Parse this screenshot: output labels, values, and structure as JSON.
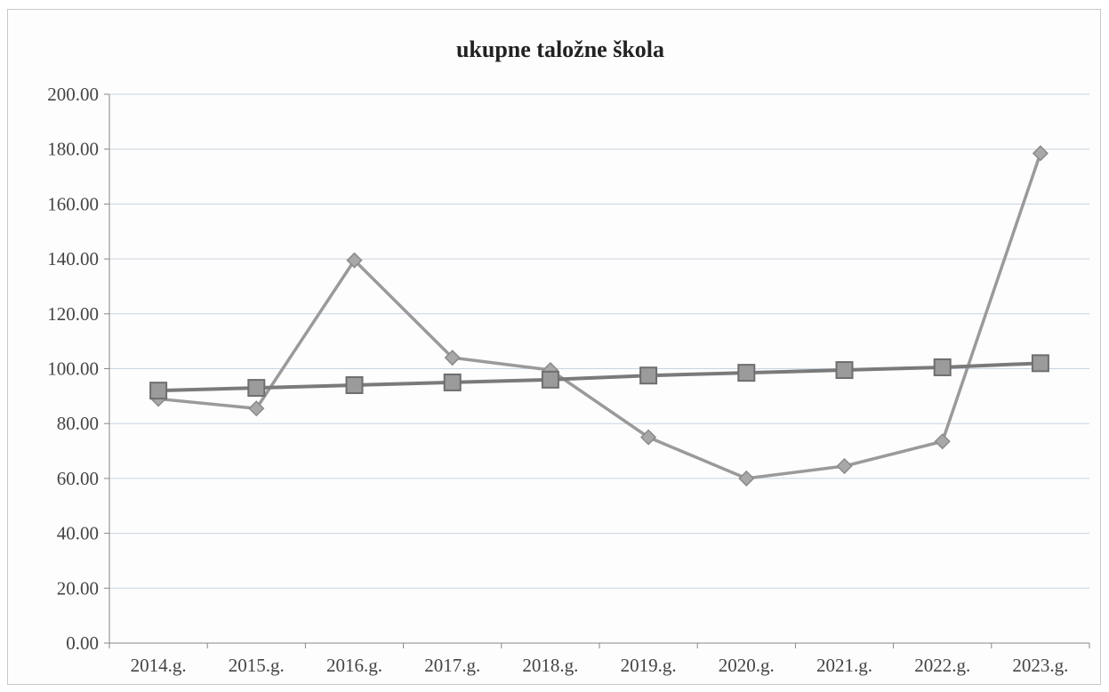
{
  "chart_data": {
    "type": "line",
    "title": "ukupne taložne škola",
    "xlabel": "",
    "ylabel": "",
    "categories": [
      "2014.g.",
      "2015.g.",
      "2016.g.",
      "2017.g.",
      "2018.g.",
      "2019.g.",
      "2020.g.",
      "2021.g.",
      "2022.g.",
      "2023.g."
    ],
    "ylim": [
      0,
      200
    ],
    "yticks": [
      "0.00",
      "20.00",
      "40.00",
      "60.00",
      "80.00",
      "100.00",
      "120.00",
      "140.00",
      "160.00",
      "180.00",
      "200.00"
    ],
    "grid": true,
    "legend": "none",
    "series": [
      {
        "marker": "diamond",
        "color": "#9a9a9a",
        "values": [
          89,
          85.5,
          139.5,
          104,
          99.5,
          75,
          60,
          64.5,
          73.5,
          178.5
        ]
      },
      {
        "marker": "square",
        "color": "#7a7a7a",
        "values": [
          92,
          93,
          94,
          95,
          96,
          97.5,
          98.5,
          99.5,
          100.5,
          102
        ]
      }
    ]
  }
}
